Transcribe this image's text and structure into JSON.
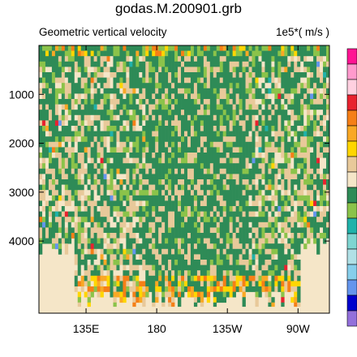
{
  "chart_data": {
    "type": "heatmap",
    "title": "godas.M.200901.grb",
    "left_label": "Geometric vertical velocity",
    "right_label": "1e5*( m/s )",
    "x_ticks": [
      {
        "label": "135E",
        "lon": 135
      },
      {
        "label": "180",
        "lon": 180
      },
      {
        "label": "135W",
        "lon": 225
      },
      {
        "label": "90W",
        "lon": 270
      }
    ],
    "y_ticks": [
      {
        "label": "1000",
        "depth": 1000
      },
      {
        "label": "2000",
        "depth": 2000
      },
      {
        "label": "3000",
        "depth": 3000
      },
      {
        "label": "4000",
        "depth": 4000
      }
    ],
    "xlim": [
      105,
      290
    ],
    "ylim_depth": [
      5475,
      0
    ],
    "x_reversed": false,
    "y_reversed": true,
    "colorbar": {
      "colors": [
        "#FF1493",
        "#FF9ACD",
        "#FFD0E0",
        "#E8222F",
        "#F57F17",
        "#F9A825",
        "#FFD600",
        "#E8C99A",
        "#F5E6C8",
        "#2E8B57",
        "#8BC34A",
        "#20B2AA",
        "#7FD5D1",
        "#B0E0E6",
        "#87CEEB",
        "#6495ED",
        "#0000CD",
        "#9370DB"
      ],
      "labels": []
    },
    "field": {
      "background_color": "#F5E6C8",
      "land_color": "#F5E6C8",
      "deep_color": "#2E8B57",
      "mid_color": "#E8C99A",
      "accent_colors": [
        "#8BC34A",
        "#FFD600",
        "#F9A825",
        "#F57F17",
        "#20B2AA",
        "#6495ED",
        "#E8222F"
      ]
    }
  }
}
